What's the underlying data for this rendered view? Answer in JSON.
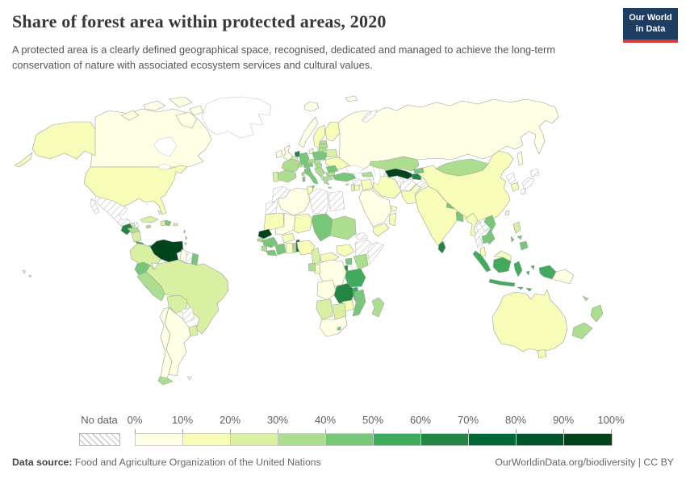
{
  "header": {
    "title": "Share of forest area within protected areas, 2020",
    "subtitle": "A protected area is a clearly defined geographical space, recognised, dedicated and managed to achieve the long-term conservation of nature with associated ecosystem services and cultural values.",
    "logo": {
      "line1": "Our World",
      "line2": "in Data",
      "bg_color": "#1d3d63",
      "accent_color": "#d73a3a"
    }
  },
  "legend": {
    "no_data_label": "No data",
    "tick_labels": [
      "0%",
      "10%",
      "20%",
      "30%",
      "40%",
      "50%",
      "60%",
      "70%",
      "80%",
      "90%",
      "100%"
    ],
    "colors": [
      "#ffffe5",
      "#f7fcb9",
      "#d9f0a3",
      "#addd8e",
      "#78c679",
      "#41ab5d",
      "#238443",
      "#006837",
      "#00562a",
      "#00441c"
    ]
  },
  "footer": {
    "source_label": "Data source:",
    "source_text": " Food and Agriculture Organization of the United Nations",
    "right_text": "OurWorldinData.org/biodiversity | CC BY"
  },
  "chart_data": {
    "type": "choropleth-map",
    "title": "Share of forest area within protected areas, 2020",
    "unit": "%",
    "bins": [
      "0-10%",
      "10-20%",
      "20-30%",
      "30-40%",
      "40-50%",
      "50-60%",
      "60-70%",
      "70-80%",
      "80-90%",
      "90-100%",
      "No data"
    ],
    "notes": "country_bins maps each country to its color bin index (0 = 0-10% ... 9 = 90-100%), nd = no data, plain = uncolored"
  },
  "map": {
    "ocean_color": "#ffffff",
    "border_color": "#9aa39a",
    "nodata_border_color": "#bdbdbd",
    "country_bins": {
      "canada": 0,
      "united-states": 1,
      "greenland": "plain",
      "mexico": "nd",
      "guatemala": 6,
      "belize": 2,
      "honduras": 3,
      "nicaragua": 2,
      "costa-rica": 5,
      "panama": 4,
      "cuba": 2,
      "jamaica": 3,
      "haiti": 2,
      "dominican-republic": 4,
      "puerto-rico": 2,
      "bahamas": 0,
      "lesser-antilles": 3,
      "trinidad": 2,
      "venezuela": 9,
      "colombia": 2,
      "guyana": 0,
      "suriname": "nd",
      "french-guiana": 4,
      "ecuador": 4,
      "peru": 3,
      "brazil": 2,
      "bolivia": 2,
      "paraguay": "nd",
      "uruguay": 2,
      "argentina": 0,
      "chile": 0,
      "chile-south": 3,
      "falklands": 0,
      "iceland": 0,
      "ireland": 0,
      "united-kingdom": 0,
      "norway": 0,
      "sweden": 1,
      "finland": 1,
      "denmark": 1,
      "netherlands": 6,
      "belgium": 2,
      "germany": 4,
      "france": 3,
      "spain": 3,
      "portugal": 2,
      "italy": 4,
      "corsica": 3,
      "switzerland": 3,
      "austria": 4,
      "czechia": 3,
      "slovakia": 3,
      "poland": 4,
      "estonia": 3,
      "latvia": 3,
      "lithuania": 3,
      "belarus": 2,
      "ukraine": 1,
      "romania": 4,
      "hungary": 3,
      "balkans": 3,
      "albania": 2,
      "bulgaria": 3,
      "greece": 3,
      "russia": 0,
      "svalbard": 0,
      "novaya-zemlya": "nd",
      "kazakhstan": 3,
      "uzbekistan": 9,
      "turkmenistan": "nd",
      "kyrgyzstan": 4,
      "tajikistan": 6,
      "caucasus": 3,
      "turkey": 4,
      "cyprus": 1,
      "syria": "nd",
      "lebanon-israel": 1,
      "jordan": 1,
      "iraq": 1,
      "iran": 1,
      "afghanistan": "nd",
      "pakistan": 1,
      "kashmir": "nd",
      "saudi-arabia": 0,
      "uae": 1,
      "yemen": 1,
      "oman": 1,
      "india": 1,
      "nepal": 4,
      "bhutan": 5,
      "bangladesh": 4,
      "sri-lanka": 6,
      "china": 1,
      "mongolia": 3,
      "north-korea": "nd",
      "south-korea": 1,
      "japan": "nd",
      "taiwan": 1,
      "hainan": 4,
      "myanmar": 1,
      "thailand": "nd",
      "laos": "nd",
      "vietnam": 4,
      "cambodia": 4,
      "malaysia": 1,
      "indonesia": 5,
      "philippines-north": 2,
      "philippines-south": 4,
      "papua-new-guinea": 0,
      "australia": 1,
      "new-zealand": 3,
      "new-caledonia": 3,
      "morocco": "nd",
      "western-sahara": "nd",
      "algeria": 0,
      "tunisia": 1,
      "libya": "nd",
      "egypt": "nd",
      "mauritania": 1,
      "mali": 0,
      "niger": 1,
      "chad": 4,
      "sudan": 3,
      "eritrea": "nd",
      "ethiopia": "nd",
      "somalia": "nd",
      "senegal": 9,
      "guinea-bissau": 3,
      "guinea": 4,
      "sierra-leone": 3,
      "liberia": 4,
      "ivory-coast": 4,
      "ghana": 1,
      "togo": 3,
      "benin": 7,
      "burkina-faso": 1,
      "nigeria": 1,
      "cameroon": 2,
      "central-african-republic": 1,
      "south-sudan": 1,
      "uganda": 4,
      "kenya": 3,
      "rwanda-burundi": 6,
      "drc": 0,
      "congo": 1,
      "gabon": 3,
      "tanzania": 5,
      "angola": 0,
      "zambia": 6,
      "malawi": 5,
      "mozambique": 4,
      "zimbabwe": 1,
      "botswana": 2,
      "namibia": 2,
      "south-africa": 0,
      "lesotho": 4,
      "madagascar": 3
    }
  }
}
